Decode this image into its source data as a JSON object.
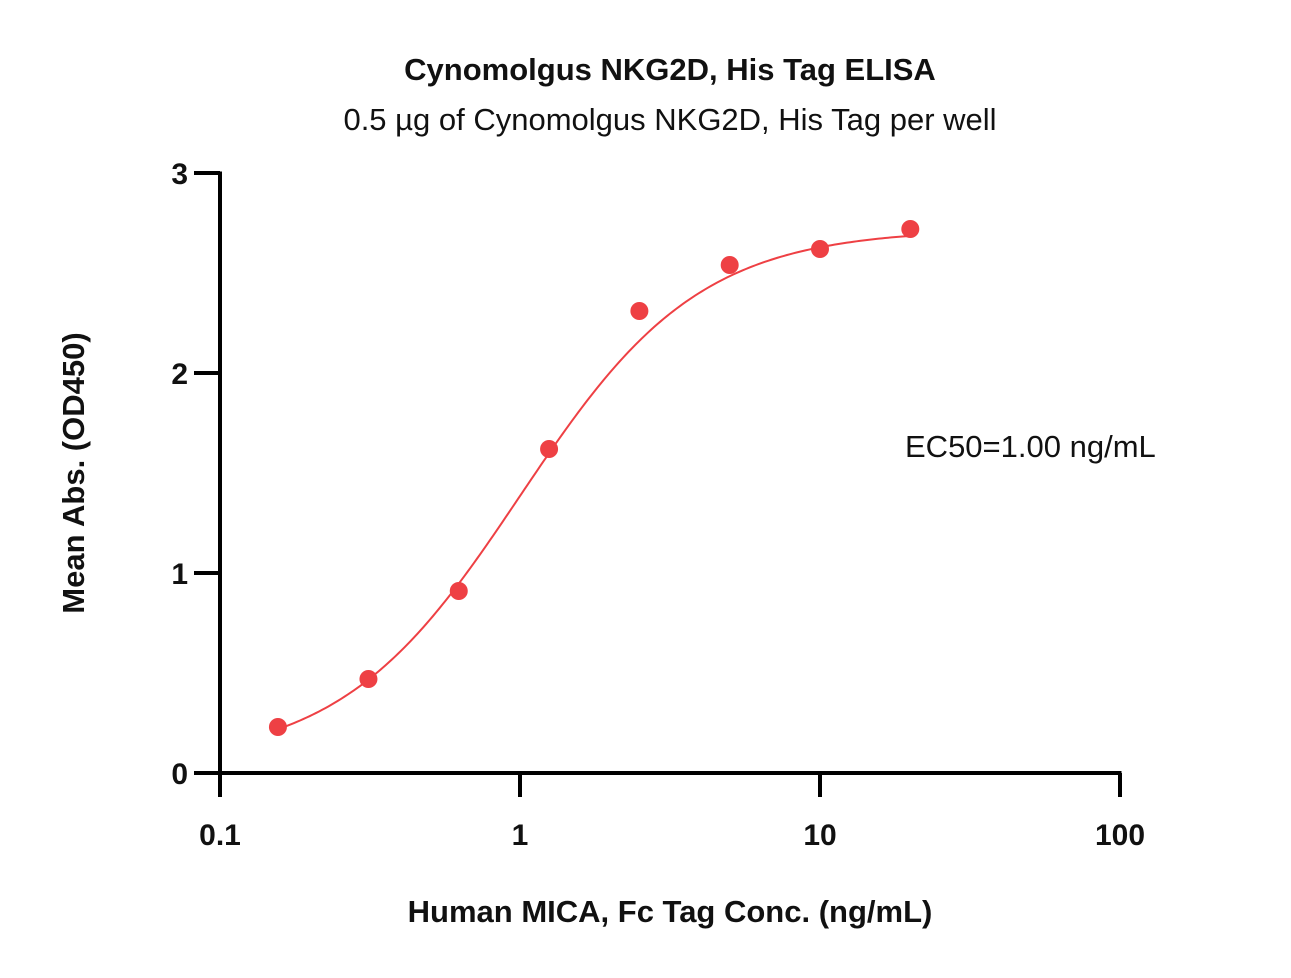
{
  "chart_data": {
    "type": "scatter",
    "title": "Cynomolgus NKG2D, His Tag ELISA",
    "subtitle": "0.5 µg of Cynomolgus NKG2D, His Tag per well",
    "xlabel": "Human MICA, Fc Tag Conc. (ng/mL)",
    "ylabel": "Mean Abs. (OD450)",
    "x_scale": "log",
    "xlim": [
      0.1,
      100
    ],
    "ylim": [
      0,
      3
    ],
    "x_ticks": [
      0.1,
      1,
      10,
      100
    ],
    "x_tick_labels": [
      "0.1",
      "1",
      "10",
      "100"
    ],
    "y_ticks": [
      0,
      1,
      2,
      3
    ],
    "y_tick_labels": [
      "0",
      "1",
      "2",
      "3"
    ],
    "grid": false,
    "annotation": "EC50=1.00 ng/mL",
    "colors": {
      "series": "#ee4044",
      "axis": "#000000",
      "text": "#111111"
    },
    "series": [
      {
        "points": [
          {
            "x": 0.156,
            "y": 0.23
          },
          {
            "x": 0.3125,
            "y": 0.47
          },
          {
            "x": 0.625,
            "y": 0.91
          },
          {
            "x": 1.25,
            "y": 1.62
          },
          {
            "x": 2.5,
            "y": 2.31
          },
          {
            "x": 5,
            "y": 2.54
          },
          {
            "x": 10,
            "y": 2.62
          },
          {
            "x": 20,
            "y": 2.72
          }
        ],
        "fit": {
          "model": "4PL",
          "bottom": 0.05,
          "top": 2.72,
          "ec50": 1.0,
          "hill": 1.45
        }
      }
    ]
  }
}
